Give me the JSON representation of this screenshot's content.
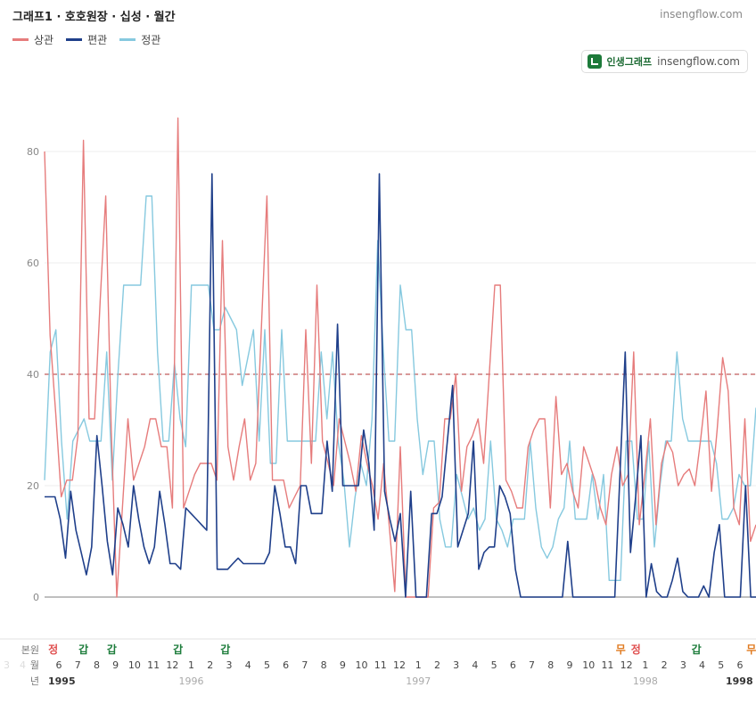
{
  "header": {
    "title": "그래프1 · 호호원장 · 십성 · 월간",
    "site": "insengflow.com"
  },
  "badge": {
    "name": "인생그래프",
    "url": "insengflow.com"
  },
  "colors": {
    "sang": "#e67c7c",
    "pyeon": "#1f3f8a",
    "jeong": "#86c9df",
    "ref": "#b03030",
    "grid": "#eeeeee",
    "green": "#1e7d3c",
    "red": "#e05050",
    "orange": "#e07a1f"
  },
  "chart_data": {
    "type": "line",
    "title": "",
    "xlabel": "",
    "ylabel": "",
    "ylim": [
      0,
      90
    ],
    "yticks": [
      0,
      20,
      40,
      60,
      80
    ],
    "reference_line": 40,
    "grid": true,
    "legend_position": "top-left",
    "series": [
      {
        "name": "상관",
        "color_key": "sang",
        "values": [
          80,
          47,
          33,
          18,
          21,
          21,
          29,
          82,
          32,
          32,
          53,
          72,
          30,
          0,
          16,
          32,
          21,
          24,
          27,
          32,
          32,
          27,
          27,
          16,
          86,
          16,
          19,
          22,
          24,
          24,
          24,
          21,
          64,
          27,
          21,
          27,
          32,
          21,
          24,
          48,
          72,
          21,
          21,
          21,
          16,
          18,
          20,
          48,
          24,
          56,
          28,
          24,
          20,
          32,
          28,
          24,
          19,
          29,
          24,
          20,
          14,
          24,
          13,
          1,
          27,
          0,
          0,
          0,
          0,
          0,
          16,
          17,
          32,
          32,
          40,
          19,
          27,
          29,
          32,
          24,
          40,
          56,
          56,
          21,
          19,
          16,
          16,
          27,
          30,
          32,
          32,
          16,
          36,
          22,
          24,
          19,
          16,
          27,
          24,
          21,
          16,
          13,
          22,
          27,
          20,
          22,
          44,
          13,
          22,
          32,
          13,
          24,
          28,
          26,
          20,
          22,
          23,
          20,
          28,
          37,
          19,
          30,
          43,
          37,
          16,
          13,
          32,
          10,
          13
        ],
        "end_offset": 0
      },
      {
        "name": "편관",
        "color_key": "pyeon",
        "values": [
          18,
          18,
          18,
          14,
          7,
          19,
          12,
          8,
          4,
          9,
          29,
          20,
          10,
          4,
          16,
          13,
          9,
          20,
          14,
          9,
          6,
          9,
          19,
          13,
          6,
          6,
          5,
          16,
          15,
          14,
          13,
          12,
          76,
          5,
          5,
          5,
          6,
          7,
          6,
          6,
          6,
          6,
          6,
          8,
          20,
          15,
          9,
          9,
          6,
          20,
          20,
          15,
          15,
          15,
          28,
          19,
          49,
          20,
          20,
          20,
          20,
          30,
          24,
          12,
          76,
          19,
          14,
          10,
          15,
          0,
          19,
          0,
          0,
          0,
          15,
          15,
          18,
          28,
          38,
          9,
          12,
          15,
          28,
          5,
          8,
          9,
          9,
          20,
          18,
          15,
          5,
          0,
          0,
          0,
          0,
          0,
          0,
          0,
          0,
          0,
          10,
          0,
          0,
          0,
          0,
          0,
          0,
          0,
          0,
          0,
          22,
          44,
          8,
          18,
          29,
          0,
          6,
          1,
          0,
          0,
          3,
          7,
          1,
          0,
          0,
          0,
          2,
          0,
          8,
          13,
          0,
          0,
          0,
          0,
          20,
          0,
          0
        ],
        "end_offset": 0
      },
      {
        "name": "정관",
        "color_key": "jeong",
        "values": [
          21,
          44,
          48,
          28,
          14,
          28,
          30,
          32,
          28,
          28,
          28,
          44,
          21,
          40,
          56,
          56,
          56,
          56,
          72,
          72,
          44,
          28,
          28,
          42,
          32,
          27,
          56,
          56,
          56,
          56,
          48,
          48,
          52,
          50,
          48,
          38,
          43,
          48,
          28,
          48,
          24,
          24,
          48,
          28,
          28,
          28,
          28,
          28,
          28,
          44,
          32,
          44,
          28,
          21,
          9,
          18,
          24,
          20,
          32,
          64,
          44,
          28,
          28,
          56,
          48,
          48,
          32,
          22,
          28,
          28,
          14,
          9,
          9,
          22,
          18,
          14,
          16,
          12,
          14,
          28,
          14,
          12,
          9,
          14,
          14,
          14,
          28,
          16,
          9,
          7,
          9,
          14,
          16,
          28,
          14,
          14,
          14,
          22,
          14,
          22,
          3,
          3,
          3,
          28,
          28,
          14,
          14,
          28,
          9,
          20,
          28,
          28,
          44,
          32,
          28,
          28,
          28,
          28,
          28,
          24,
          14,
          14,
          16,
          22,
          20,
          20,
          34
        ],
        "end_offset": 0
      }
    ],
    "x_axis": {
      "row_labels": {
        "bonwon": "본원",
        "month": "월",
        "year": "년"
      },
      "months": [
        "6",
        "7",
        "8",
        "9",
        "10",
        "11",
        "12",
        "1",
        "2",
        "3",
        "4",
        "5",
        "6",
        "7",
        "8",
        "9",
        "10",
        "11",
        "12",
        "1",
        "2",
        "3",
        "4",
        "5",
        "6",
        "7",
        "8",
        "9",
        "10",
        "11",
        "12",
        "1",
        "2",
        "3",
        "4",
        "5",
        "6"
      ],
      "years": [
        {
          "label": "1995",
          "month_index": 0,
          "bold": true
        },
        {
          "label": "1996",
          "month_index": 7,
          "bold": false
        },
        {
          "label": "1997",
          "month_index": 19,
          "bold": false
        },
        {
          "label": "1998",
          "month_index": 31,
          "bold": false
        },
        {
          "label": "1998",
          "month_index": 36,
          "bold": true
        }
      ],
      "markers": [
        {
          "label": "정",
          "month_index": -0.3,
          "color_key": "red"
        },
        {
          "label": "갑",
          "month_index": 1.3,
          "color_key": "green"
        },
        {
          "label": "갑",
          "month_index": 2.8,
          "color_key": "green"
        },
        {
          "label": "갑",
          "month_index": 6.3,
          "color_key": "green"
        },
        {
          "label": "갑",
          "month_index": 8.8,
          "color_key": "green"
        },
        {
          "label": "무",
          "month_index": 29.7,
          "color_key": "orange"
        },
        {
          "label": "정",
          "month_index": 30.5,
          "color_key": "red"
        },
        {
          "label": "갑",
          "month_index": 33.7,
          "color_key": "green"
        },
        {
          "label": "무",
          "month_index": 36.6,
          "color_key": "orange"
        }
      ],
      "faded_left": [
        "3",
        "4"
      ]
    }
  }
}
